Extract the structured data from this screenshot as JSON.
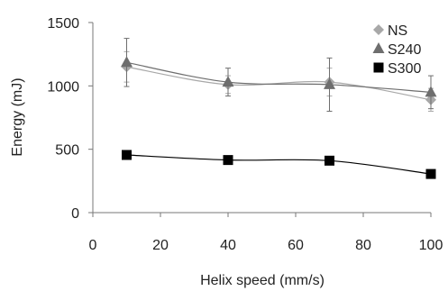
{
  "chart_data": {
    "type": "line",
    "xlabel": "Helix speed (mm/s)",
    "ylabel": "Energy (mJ)",
    "xlim": [
      0,
      100
    ],
    "ylim": [
      0,
      1500
    ],
    "xticks": [
      0,
      20,
      40,
      60,
      80,
      100
    ],
    "yticks": [
      0,
      500,
      1000,
      1500
    ],
    "grid": false,
    "legend": "top-right",
    "series": [
      {
        "name": "NS",
        "marker": "diamond",
        "color": "#a8a8a8",
        "x": [
          10,
          40,
          70,
          100
        ],
        "y": [
          1150,
          1010,
          1030,
          890
        ],
        "err": [
          120,
          70,
          110,
          90
        ]
      },
      {
        "name": "S240",
        "marker": "triangle",
        "color": "#6e6e6e",
        "x": [
          10,
          40,
          70,
          100
        ],
        "y": [
          1185,
          1030,
          1010,
          950
        ],
        "err": [
          190,
          110,
          210,
          130
        ]
      },
      {
        "name": "S300",
        "marker": "square",
        "color": "#000000",
        "x": [
          10,
          40,
          70,
          100
        ],
        "y": [
          455,
          415,
          410,
          305
        ],
        "err": [
          0,
          0,
          0,
          0
        ]
      }
    ]
  }
}
